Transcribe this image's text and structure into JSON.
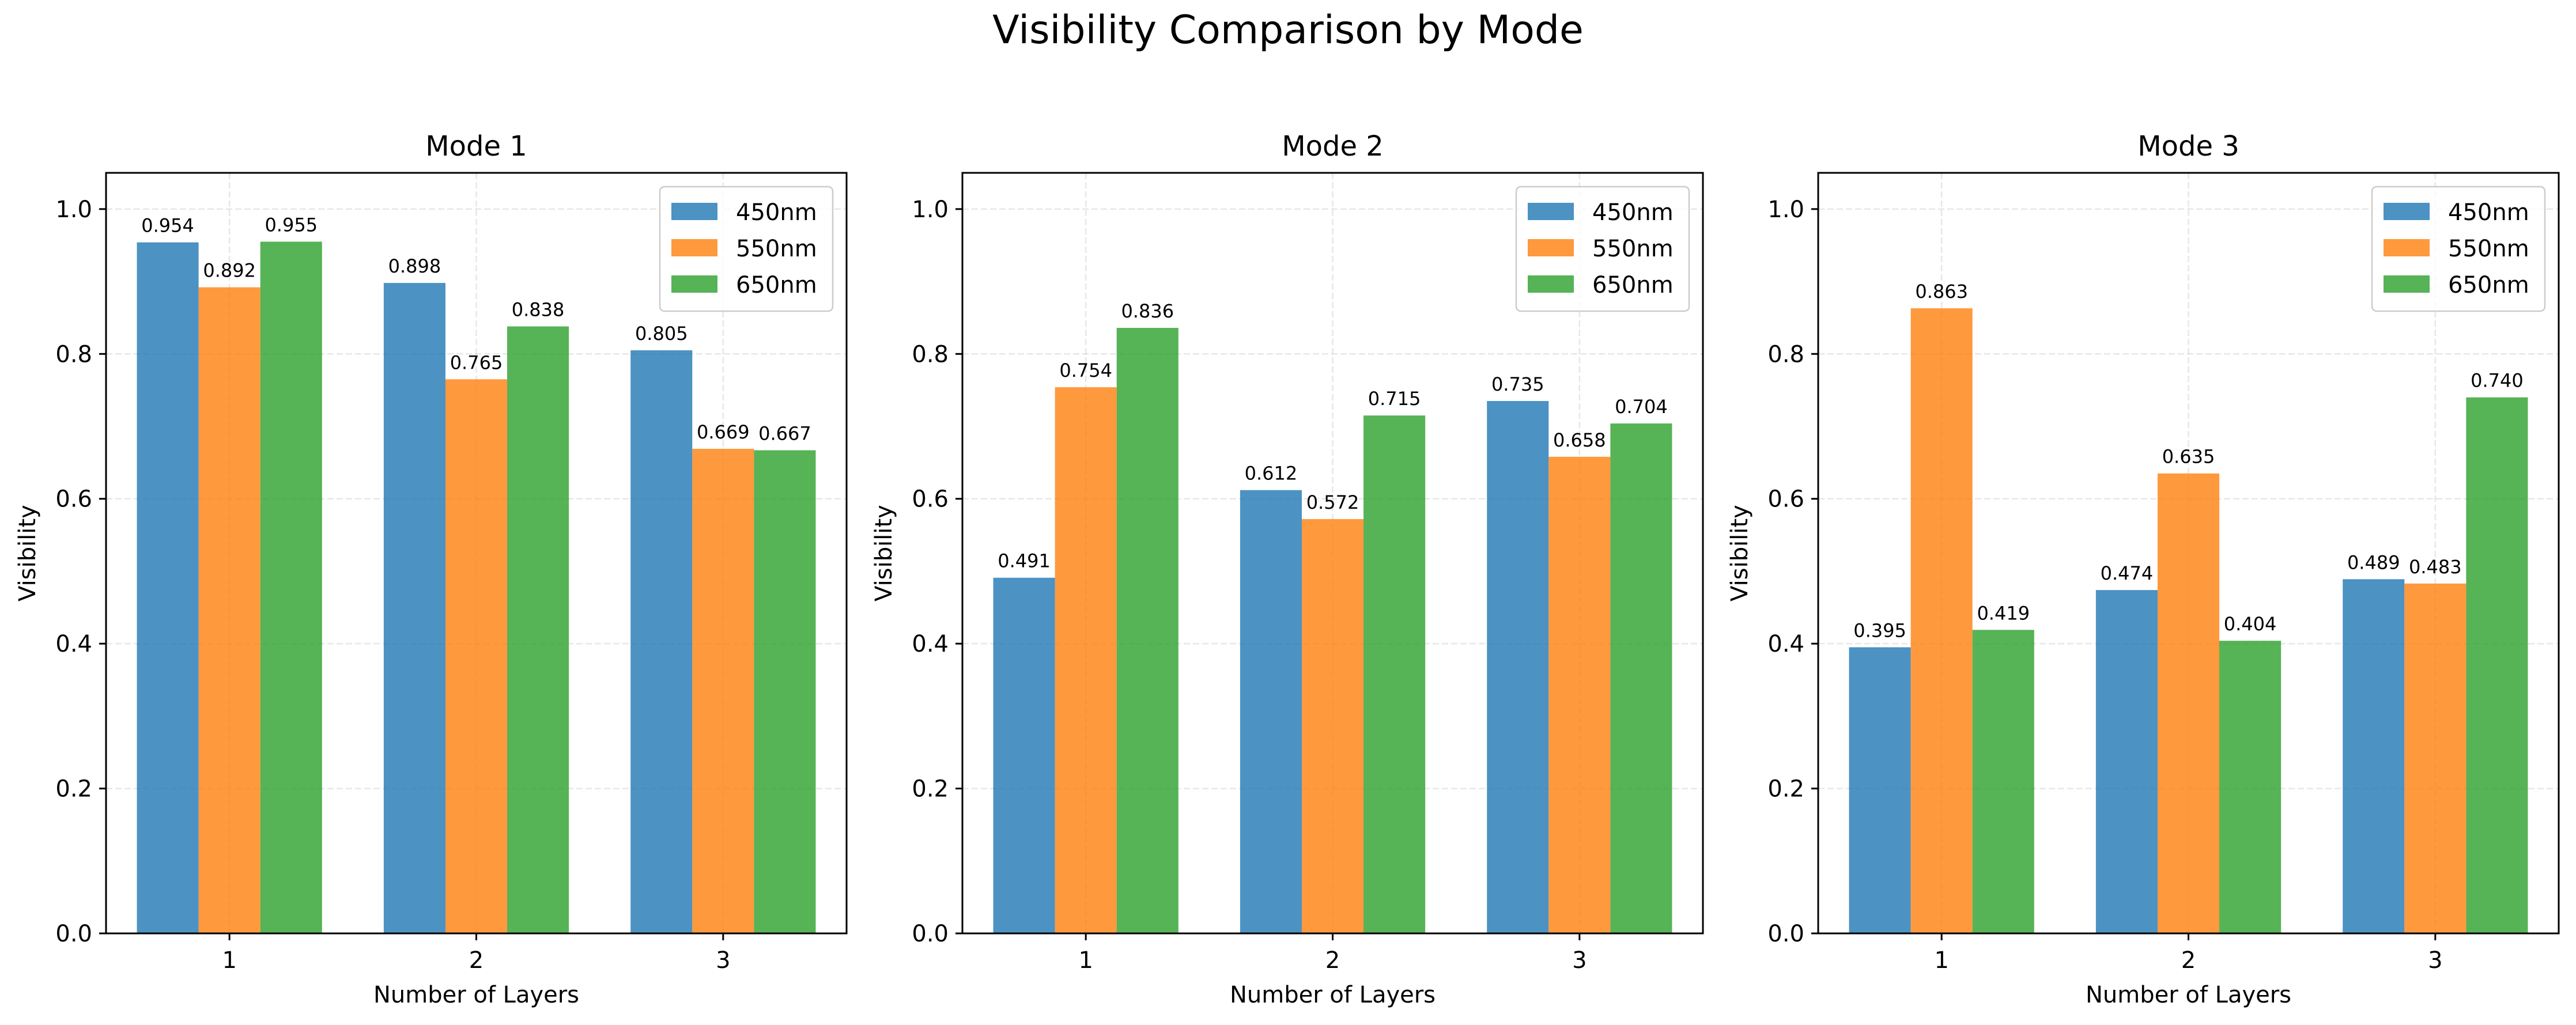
{
  "figure": {
    "title": "Visibility Comparison by Mode"
  },
  "colors": {
    "450nm": "#1f77b4",
    "550nm": "#ff7f0e",
    "650nm": "#2ca02c",
    "grid": "#b0b0b0",
    "axis": "#000000"
  },
  "chart_data": [
    {
      "type": "bar",
      "title": "Mode 1",
      "xlabel": "Number of Layers",
      "ylabel": "Visibility",
      "categories": [
        "1",
        "2",
        "3"
      ],
      "ylim": [
        0,
        1.05
      ],
      "yticks": [
        "0.0",
        "0.2",
        "0.4",
        "0.6",
        "0.8",
        "1.0"
      ],
      "grid": true,
      "legend_position": "top-right",
      "series": [
        {
          "name": "450nm",
          "values": [
            0.954,
            0.898,
            0.805
          ],
          "labels": [
            "0.954",
            "0.898",
            "0.805"
          ]
        },
        {
          "name": "550nm",
          "values": [
            0.892,
            0.765,
            0.669
          ],
          "labels": [
            "0.892",
            "0.765",
            "0.669"
          ]
        },
        {
          "name": "650nm",
          "values": [
            0.955,
            0.838,
            0.667
          ],
          "labels": [
            "0.955",
            "0.838",
            "0.667"
          ]
        }
      ]
    },
    {
      "type": "bar",
      "title": "Mode 2",
      "xlabel": "Number of Layers",
      "ylabel": "Visibility",
      "categories": [
        "1",
        "2",
        "3"
      ],
      "ylim": [
        0,
        1.05
      ],
      "yticks": [
        "0.0",
        "0.2",
        "0.4",
        "0.6",
        "0.8",
        "1.0"
      ],
      "grid": true,
      "legend_position": "top-right",
      "series": [
        {
          "name": "450nm",
          "values": [
            0.491,
            0.612,
            0.735
          ],
          "labels": [
            "0.491",
            "0.612",
            "0.735"
          ]
        },
        {
          "name": "550nm",
          "values": [
            0.754,
            0.572,
            0.658
          ],
          "labels": [
            "0.754",
            "0.572",
            "0.658"
          ]
        },
        {
          "name": "650nm",
          "values": [
            0.836,
            0.715,
            0.704
          ],
          "labels": [
            "0.836",
            "0.715",
            "0.704"
          ]
        }
      ]
    },
    {
      "type": "bar",
      "title": "Mode 3",
      "xlabel": "Number of Layers",
      "ylabel": "Visibility",
      "categories": [
        "1",
        "2",
        "3"
      ],
      "ylim": [
        0,
        1.05
      ],
      "yticks": [
        "0.0",
        "0.2",
        "0.4",
        "0.6",
        "0.8",
        "1.0"
      ],
      "grid": true,
      "legend_position": "top-right",
      "series": [
        {
          "name": "450nm",
          "values": [
            0.395,
            0.474,
            0.489
          ],
          "labels": [
            "0.395",
            "0.474",
            "0.489"
          ]
        },
        {
          "name": "550nm",
          "values": [
            0.863,
            0.635,
            0.483
          ],
          "labels": [
            "0.863",
            "0.635",
            "0.483"
          ]
        },
        {
          "name": "650nm",
          "values": [
            0.419,
            0.404,
            0.74
          ],
          "labels": [
            "0.419",
            "0.404",
            "0.740"
          ]
        }
      ]
    }
  ]
}
